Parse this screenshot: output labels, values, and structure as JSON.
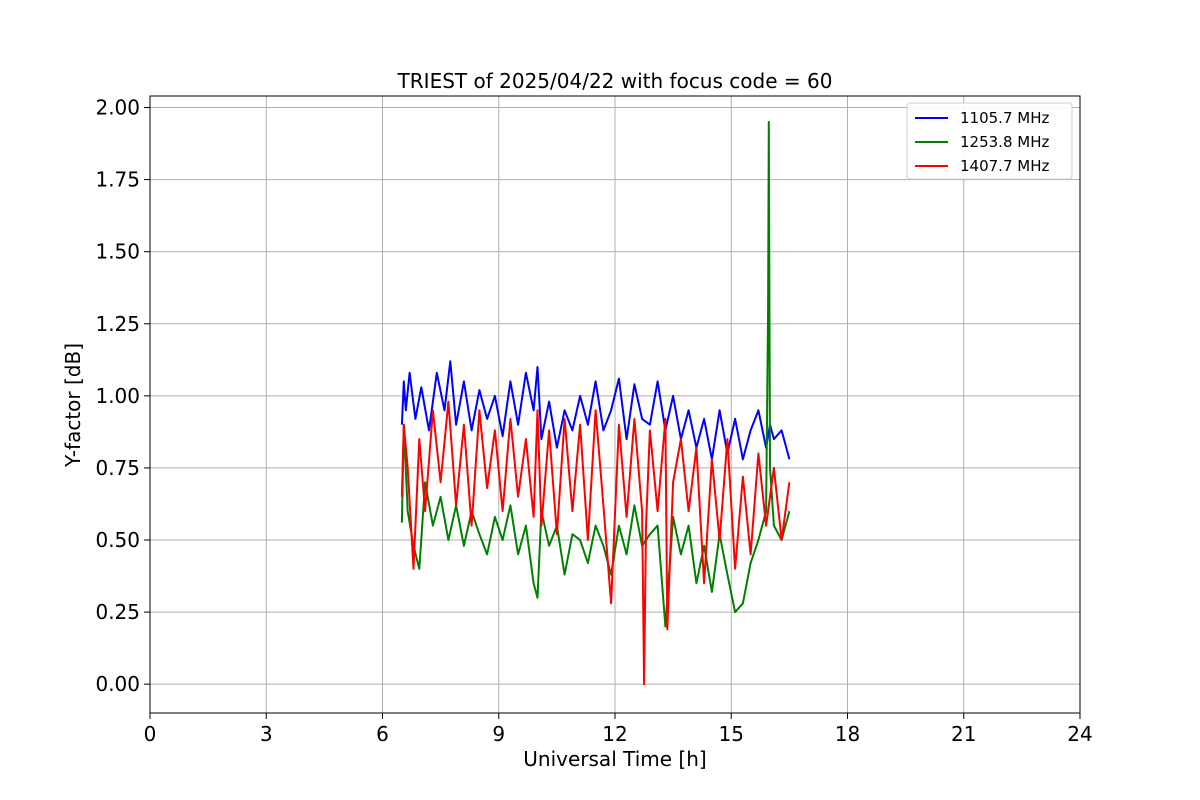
{
  "chart_data": {
    "type": "line",
    "title": "TRIEST of 2025/04/22 with focus code = 60",
    "xlabel": "Universal Time [h]",
    "ylabel": "Y-factor [dB]",
    "xlim": [
      0,
      24
    ],
    "ylim": [
      -0.1,
      2.04
    ],
    "xticks": [
      0,
      3,
      6,
      9,
      12,
      15,
      18,
      21,
      24
    ],
    "yticks": [
      0.0,
      0.25,
      0.5,
      0.75,
      1.0,
      1.25,
      1.5,
      1.75,
      2.0
    ],
    "xtick_labels": [
      "0",
      "3",
      "6",
      "9",
      "12",
      "15",
      "18",
      "21",
      "24"
    ],
    "ytick_labels": [
      "0.00",
      "0.25",
      "0.50",
      "0.75",
      "1.00",
      "1.25",
      "1.50",
      "1.75",
      "2.00"
    ],
    "grid": true,
    "legend_position": "top-right",
    "series": [
      {
        "name": "1105.7 MHz",
        "color": "#0000ff",
        "x": [
          6.5,
          6.55,
          6.6,
          6.7,
          6.85,
          7.0,
          7.2,
          7.4,
          7.6,
          7.75,
          7.9,
          8.1,
          8.3,
          8.5,
          8.7,
          8.9,
          9.1,
          9.3,
          9.5,
          9.7,
          9.9,
          10.0,
          10.1,
          10.3,
          10.5,
          10.7,
          10.9,
          11.1,
          11.3,
          11.5,
          11.7,
          11.9,
          12.1,
          12.3,
          12.5,
          12.7,
          12.9,
          13.1,
          13.3,
          13.5,
          13.7,
          13.9,
          14.1,
          14.3,
          14.5,
          14.7,
          14.9,
          15.1,
          15.3,
          15.5,
          15.7,
          15.9,
          16.0,
          16.1,
          16.3,
          16.5
        ],
        "y": [
          0.9,
          1.05,
          0.95,
          1.08,
          0.92,
          1.03,
          0.88,
          1.08,
          0.95,
          1.12,
          0.9,
          1.05,
          0.88,
          1.02,
          0.92,
          1.0,
          0.86,
          1.05,
          0.9,
          1.08,
          0.95,
          1.1,
          0.85,
          0.98,
          0.82,
          0.95,
          0.88,
          1.0,
          0.9,
          1.05,
          0.88,
          0.95,
          1.06,
          0.85,
          1.04,
          0.92,
          0.9,
          1.05,
          0.88,
          1.0,
          0.85,
          0.95,
          0.82,
          0.92,
          0.78,
          0.95,
          0.8,
          0.92,
          0.78,
          0.88,
          0.95,
          0.82,
          0.9,
          0.85,
          0.88,
          0.78
        ]
      },
      {
        "name": "1253.8 MHz",
        "color": "#008000",
        "x": [
          6.5,
          6.55,
          6.65,
          6.8,
          6.95,
          7.1,
          7.3,
          7.5,
          7.7,
          7.9,
          8.1,
          8.3,
          8.5,
          8.7,
          8.9,
          9.1,
          9.3,
          9.5,
          9.7,
          9.9,
          10.0,
          10.1,
          10.3,
          10.5,
          10.7,
          10.9,
          11.1,
          11.3,
          11.5,
          11.7,
          11.9,
          12.1,
          12.3,
          12.5,
          12.7,
          12.9,
          13.1,
          13.3,
          13.5,
          13.7,
          13.9,
          14.1,
          14.3,
          14.5,
          14.7,
          14.9,
          15.1,
          15.3,
          15.5,
          15.7,
          15.9,
          15.95,
          15.97,
          16.0,
          16.1,
          16.3,
          16.5
        ],
        "y": [
          0.56,
          0.9,
          0.6,
          0.48,
          0.4,
          0.7,
          0.55,
          0.65,
          0.5,
          0.62,
          0.48,
          0.6,
          0.52,
          0.45,
          0.58,
          0.5,
          0.62,
          0.45,
          0.55,
          0.35,
          0.3,
          0.6,
          0.48,
          0.55,
          0.38,
          0.52,
          0.5,
          0.42,
          0.55,
          0.48,
          0.38,
          0.55,
          0.45,
          0.62,
          0.48,
          0.52,
          0.55,
          0.2,
          0.58,
          0.45,
          0.55,
          0.35,
          0.48,
          0.32,
          0.52,
          0.38,
          0.25,
          0.28,
          0.42,
          0.5,
          0.6,
          1.3,
          1.95,
          0.75,
          0.55,
          0.5,
          0.6
        ]
      },
      {
        "name": "1407.7 MHz",
        "color": "#ff0000",
        "x": [
          6.5,
          6.55,
          6.65,
          6.8,
          6.95,
          7.1,
          7.3,
          7.5,
          7.7,
          7.9,
          8.1,
          8.3,
          8.5,
          8.7,
          8.9,
          9.1,
          9.3,
          9.5,
          9.7,
          9.9,
          10.0,
          10.1,
          10.3,
          10.5,
          10.7,
          10.9,
          11.1,
          11.3,
          11.5,
          11.7,
          11.9,
          12.1,
          12.3,
          12.5,
          12.7,
          12.75,
          12.8,
          12.9,
          13.1,
          13.3,
          13.35,
          13.5,
          13.7,
          13.9,
          14.1,
          14.3,
          14.5,
          14.7,
          14.9,
          15.1,
          15.3,
          15.5,
          15.7,
          15.9,
          16.1,
          16.3,
          16.5
        ],
        "y": [
          0.65,
          0.9,
          0.75,
          0.4,
          0.85,
          0.6,
          0.95,
          0.7,
          0.98,
          0.62,
          0.9,
          0.55,
          0.95,
          0.68,
          0.88,
          0.6,
          0.92,
          0.65,
          0.85,
          0.58,
          0.95,
          0.55,
          0.88,
          0.52,
          0.92,
          0.6,
          0.9,
          0.5,
          0.95,
          0.62,
          0.28,
          0.9,
          0.58,
          0.92,
          0.6,
          0.0,
          0.55,
          0.88,
          0.6,
          0.92,
          0.19,
          0.7,
          0.85,
          0.6,
          0.82,
          0.35,
          0.78,
          0.5,
          0.85,
          0.4,
          0.72,
          0.45,
          0.8,
          0.55,
          0.75,
          0.5,
          0.7
        ]
      }
    ]
  }
}
